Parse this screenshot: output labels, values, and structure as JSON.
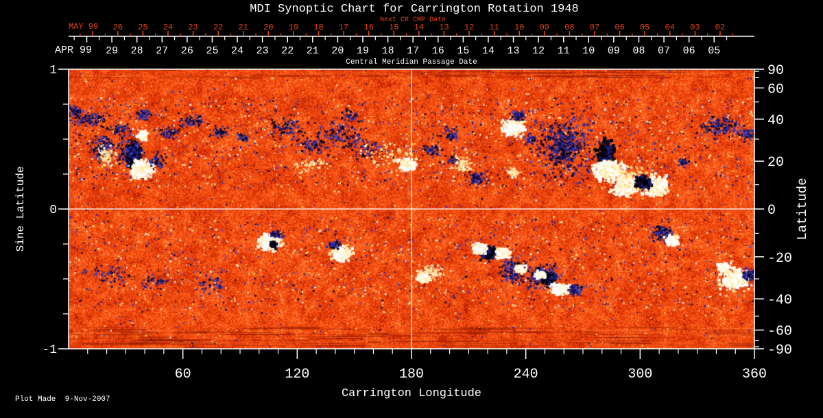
{
  "title": "MDI Synoptic Chart for Carrington Rotation 1948",
  "colors": {
    "background": "#000000",
    "foreground": "#ffffff",
    "next_cr": "#e8460f"
  },
  "top_axis": {
    "next_cr_label": "Next CR CMP Date",
    "next_month": "MAY 99",
    "next_dates": [
      "26",
      "25",
      "24",
      "23",
      "22",
      "21",
      "20",
      "19",
      "18",
      "17",
      "16",
      "15",
      "14",
      "13",
      "12",
      "11",
      "10",
      "09",
      "08",
      "07",
      "06",
      "05",
      "04",
      "03",
      "02"
    ],
    "current_month": "APR 99",
    "current_dates": [
      "29",
      "28",
      "27",
      "26",
      "25",
      "24",
      "23",
      "22",
      "21",
      "20",
      "19",
      "18",
      "17",
      "16",
      "15",
      "14",
      "13",
      "12",
      "11",
      "10",
      "09",
      "08",
      "07",
      "06",
      "05"
    ],
    "axis_title": "Central Meridian Passage Date"
  },
  "left_axis": {
    "label": "Sine Latitude",
    "ticks": [
      "1",
      "0",
      "-1"
    ],
    "tick_values": [
      1,
      0,
      -1
    ],
    "minor_tick_values": [
      0.75,
      0.5,
      0.25,
      -0.25,
      -0.5,
      -0.75
    ]
  },
  "right_axis": {
    "label": "Latitude",
    "labeled_ticks": [
      90,
      60,
      40,
      20,
      0,
      -20,
      -40,
      -60,
      -90
    ],
    "minor_ticks": [
      80,
      70,
      50,
      30,
      10,
      -10,
      -30,
      -50,
      -70,
      -80
    ]
  },
  "bottom_axis": {
    "label": "Carrington Longitude",
    "ticks": [
      60,
      120,
      180,
      240,
      300,
      360
    ],
    "minor_step_deg": 10,
    "range": [
      0,
      360
    ]
  },
  "footer": {
    "plot_made": "Plot Made  9-Nov-2007"
  },
  "crosshair": {
    "longitude": 180,
    "sine_latitude": 0
  },
  "chart_data": {
    "type": "heatmap",
    "title": "MDI Synoptic Chart for Carrington Rotation 1948",
    "xlabel": "Carrington Longitude",
    "ylabel_left": "Sine Latitude",
    "ylabel_right": "Latitude",
    "xlim": [
      0,
      360
    ],
    "ylim": [
      -1,
      1
    ],
    "description": "Full-disk MDI magnetogram synoptic map: quiet Sun is orange-red granulation, negative magnetic polarity is dark blue/black, positive polarity is white/pale yellow",
    "texture": {
      "palette_stops": [
        [
          0.05,
          "#9b1900"
        ],
        [
          0.15,
          "#b92302"
        ],
        [
          0.35,
          "#da3406"
        ],
        [
          0.6,
          "#ee480e"
        ],
        [
          0.8,
          "#fa5f1c"
        ],
        [
          0.92,
          "#fd7a30"
        ],
        [
          0.975,
          "#ff984a"
        ],
        [
          0.995,
          "#ffc878"
        ],
        [
          2,
          "#ffeeb4"
        ]
      ],
      "blue_speck": "#2828b4",
      "yellow_speck": "#ffe14a"
    },
    "polar_streaks": {
      "top_count": 55,
      "bottom_count": 150
    },
    "speckle_bands": [
      {
        "sl": [
          0.15,
          0.8
        ],
        "navy": 850,
        "cream": 520
      },
      {
        "sl": [
          -0.72,
          -0.05
        ],
        "navy": 680,
        "cream": 470
      },
      {
        "sl": [
          -0.97,
          0.97
        ],
        "navy": 320,
        "cream": 230
      }
    ],
    "region_types": {
      "0": "negative (blue speckle)",
      "1": "strong negative (black core)",
      "2": "strong positive (white core)",
      "3": "positive (pale yellow)"
    },
    "active_regions": [
      [
        10.8,
        0.647,
        7.9,
        0.049,
        70,
        0
      ],
      [
        25.9,
        0.569,
        5.8,
        0.039,
        45,
        0
      ],
      [
        38.9,
        0.676,
        5.0,
        0.034,
        40,
        0
      ],
      [
        52.6,
        0.544,
        5.0,
        0.034,
        40,
        0
      ],
      [
        65.5,
        0.627,
        5.8,
        0.039,
        45,
        0
      ],
      [
        79.2,
        0.549,
        3.6,
        0.029,
        30,
        0
      ],
      [
        91.8,
        0.51,
        2.9,
        0.025,
        20,
        0
      ],
      [
        34.2,
        0.373,
        3.2,
        0.078,
        160,
        1
      ],
      [
        31.7,
        0.402,
        5.8,
        0.098,
        120,
        0
      ],
      [
        38.2,
        0.284,
        5.0,
        0.054,
        220,
        2
      ],
      [
        38.9,
        0.525,
        2.5,
        0.025,
        60,
        2
      ],
      [
        46.8,
        0.338,
        4.3,
        0.049,
        40,
        0
      ],
      [
        113.4,
        0.583,
        8.6,
        0.069,
        60,
        0
      ],
      [
        126.7,
        0.461,
        7.9,
        0.059,
        50,
        0
      ],
      [
        142.2,
        0.534,
        10.1,
        0.078,
        70,
        0
      ],
      [
        157.3,
        0.422,
        7.9,
        0.059,
        50,
        0
      ],
      [
        147.6,
        0.667,
        5.0,
        0.039,
        30,
        0
      ],
      [
        169.2,
        0.387,
        10.8,
        0.098,
        60,
        3
      ],
      [
        126.0,
        0.314,
        7.2,
        0.049,
        30,
        3
      ],
      [
        190.8,
        0.422,
        4.3,
        0.039,
        35,
        0
      ],
      [
        202.3,
        0.348,
        3.6,
        0.029,
        25,
        0
      ],
      [
        234.0,
        0.583,
        4.7,
        0.049,
        150,
        2
      ],
      [
        242.3,
        0.5,
        2.9,
        0.029,
        30,
        0
      ],
      [
        261.0,
        0.436,
        13.7,
        0.206,
        260,
        0
      ],
      [
        259.2,
        0.461,
        7.9,
        0.123,
        140,
        0
      ],
      [
        281.9,
        0.373,
        4.0,
        0.098,
        180,
        1
      ],
      [
        283.7,
        0.275,
        6.5,
        0.059,
        200,
        2
      ],
      [
        292.3,
        0.167,
        5.8,
        0.059,
        180,
        2
      ],
      [
        307.8,
        0.167,
        5.8,
        0.059,
        170,
        2
      ],
      [
        297.0,
        0.225,
        10.8,
        0.108,
        80,
        3
      ],
      [
        301.0,
        0.186,
        3.2,
        0.039,
        90,
        1
      ],
      [
        322.2,
        0.338,
        2.5,
        0.025,
        25,
        0
      ],
      [
        342.7,
        0.588,
        9.4,
        0.064,
        110,
        0
      ],
      [
        356.4,
        0.534,
        4.3,
        0.039,
        40,
        0
      ],
      [
        105.1,
        -0.235,
        5.0,
        0.049,
        150,
        2
      ],
      [
        109.4,
        -0.181,
        2.9,
        0.025,
        35,
        0
      ],
      [
        107.6,
        -0.26,
        1.4,
        0.02,
        30,
        1
      ],
      [
        143.3,
        -0.314,
        4.3,
        0.044,
        130,
        2
      ],
      [
        139.3,
        -0.255,
        2.9,
        0.025,
        30,
        0
      ],
      [
        190.1,
        -0.456,
        6.5,
        0.049,
        60,
        3
      ],
      [
        186.5,
        -0.495,
        2.9,
        0.029,
        70,
        2
      ],
      [
        220.3,
        -0.314,
        3.6,
        0.044,
        120,
        1
      ],
      [
        216.0,
        -0.284,
        3.2,
        0.034,
        100,
        2
      ],
      [
        228.2,
        -0.319,
        2.9,
        0.029,
        80,
        2
      ],
      [
        233.3,
        -0.436,
        5.8,
        0.078,
        110,
        0
      ],
      [
        237.6,
        -0.426,
        2.5,
        0.025,
        60,
        2
      ],
      [
        249.1,
        -0.48,
        7.9,
        0.078,
        150,
        0
      ],
      [
        252.0,
        -0.495,
        2.9,
        0.029,
        70,
        1
      ],
      [
        257.8,
        -0.574,
        4.0,
        0.034,
        110,
        2
      ],
      [
        266.0,
        -0.578,
        3.2,
        0.034,
        60,
        0
      ],
      [
        247.7,
        -0.471,
        2.2,
        0.02,
        40,
        2
      ],
      [
        311.8,
        -0.176,
        5.8,
        0.049,
        80,
        0
      ],
      [
        316.8,
        -0.225,
        2.9,
        0.029,
        70,
        2
      ],
      [
        349.9,
        -0.5,
        6.5,
        0.059,
        180,
        2
      ],
      [
        358.2,
        -0.471,
        4.0,
        0.039,
        80,
        0
      ],
      [
        343.8,
        -0.422,
        2.9,
        0.025,
        50,
        2
      ],
      [
        21.6,
        -0.471,
        10.8,
        0.059,
        40,
        0
      ],
      [
        46.8,
        -0.52,
        9.0,
        0.049,
        35,
        0
      ],
      [
        75.6,
        -0.544,
        7.2,
        0.049,
        30,
        0
      ],
      [
        2.9,
        0.706,
        3.6,
        0.039,
        30,
        0
      ],
      [
        178.2,
        0.314,
        3.6,
        0.039,
        70,
        2
      ],
      [
        199.8,
        0.534,
        3.6,
        0.049,
        40,
        0
      ],
      [
        207.0,
        0.314,
        5.0,
        0.049,
        60,
        3
      ],
      [
        214.2,
        0.216,
        4.3,
        0.039,
        45,
        0
      ],
      [
        235.8,
        0.667,
        3.6,
        0.029,
        50,
        0
      ],
      [
        233.3,
        0.265,
        2.9,
        0.029,
        40,
        3
      ],
      [
        18.0,
        0.436,
        5.0,
        0.088,
        90,
        0
      ],
      [
        19.8,
        0.387,
        3.6,
        0.069,
        50,
        3
      ]
    ]
  }
}
